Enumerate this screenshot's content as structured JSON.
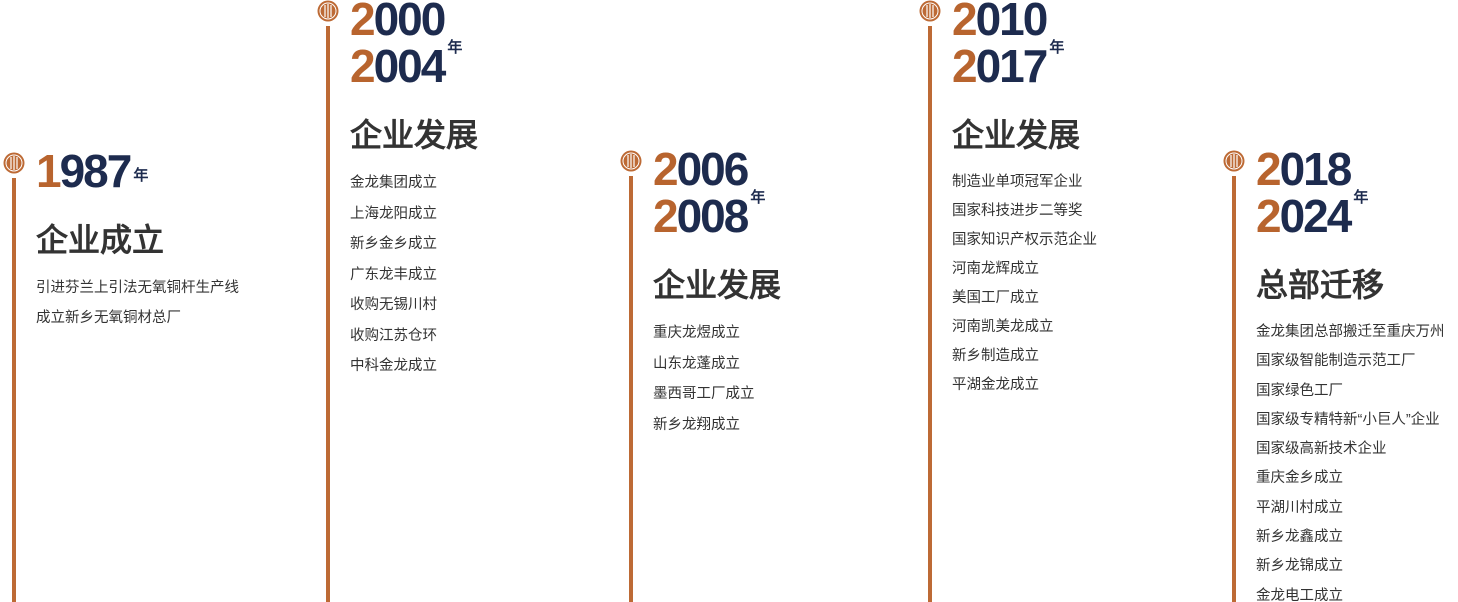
{
  "timeline": [
    {
      "years": [
        "1987"
      ],
      "unit": "年",
      "heading": "企业成立",
      "items": [
        "引进芬兰上引法无氧铜杆生产线",
        "成立新乡无氧铜材总厂"
      ]
    },
    {
      "years": [
        "2000",
        "2004"
      ],
      "unit": "年",
      "heading": "企业发展",
      "items": [
        "金龙集团成立",
        "上海龙阳成立",
        "新乡金乡成立",
        "广东龙丰成立",
        "收购无锡川村",
        "收购江苏仓环",
        "中科金龙成立"
      ]
    },
    {
      "years": [
        "2006",
        "2008"
      ],
      "unit": "年",
      "heading": "企业发展",
      "items": [
        "重庆龙煜成立",
        "山东龙蓬成立",
        "墨西哥工厂成立",
        "新乡龙翔成立"
      ]
    },
    {
      "years": [
        "2010",
        "2017"
      ],
      "unit": "年",
      "heading": "企业发展",
      "items": [
        "制造业单项冠军企业",
        "国家科技进步二等奖",
        "国家知识产权示范企业",
        "河南龙辉成立",
        "美国工厂成立",
        "河南凯美龙成立",
        "新乡制造成立",
        "平湖金龙成立"
      ]
    },
    {
      "years": [
        "2018",
        "2024"
      ],
      "unit": "年",
      "heading": "总部迁移",
      "items": [
        "金龙集团总部搬迁至重庆万州",
        "国家级智能制造示范工厂",
        "国家绿色工厂",
        "国家级专精特新“小巨人”企业",
        "国家级高新技术企业",
        "重庆金乡成立",
        "平湖川村成立",
        "新乡龙鑫成立",
        "新乡龙锦成立",
        "金龙电工成立"
      ]
    }
  ]
}
